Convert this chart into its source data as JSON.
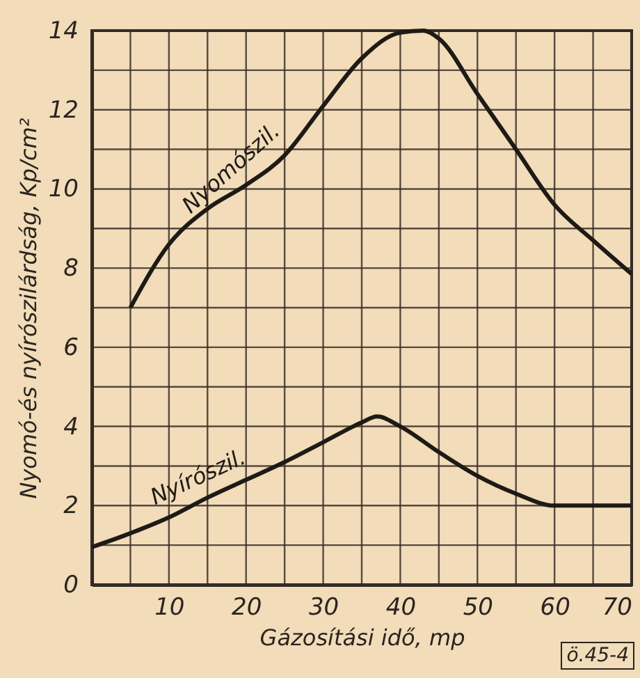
{
  "chart_data": {
    "type": "line",
    "xlabel": "Gázosítási idő, mp",
    "ylabel": "Nyomó-és nyírószilárdság, Kp/cm²",
    "annotations": [
      "ö.45-4"
    ],
    "series": [
      {
        "name": "Nyomószil.",
        "color": "#1e1a16",
        "x": [
          5,
          10,
          15,
          20,
          25,
          30,
          35,
          40,
          43,
          45,
          50,
          55,
          60,
          65,
          70
        ],
        "values": [
          7,
          8.6,
          9.5,
          10.1,
          10.85,
          12.1,
          13.3,
          13.95,
          14,
          13.8,
          12.4,
          11,
          9.6,
          8.7,
          7.85
        ]
      },
      {
        "name": "Nyírószil.",
        "color": "#1e1a16",
        "x": [
          0,
          5,
          10,
          15,
          20,
          25,
          30,
          35,
          37,
          40,
          45,
          50,
          55,
          60,
          65,
          70
        ],
        "values": [
          0.95,
          1.3,
          1.7,
          2.2,
          2.65,
          3.1,
          3.6,
          4.1,
          4.25,
          4,
          3.35,
          2.75,
          2.3,
          2,
          2,
          2
        ]
      }
    ],
    "xlim": [
      0,
      70
    ],
    "ylim": [
      0,
      14
    ],
    "xticks": [
      {
        "value": 0,
        "label": null
      },
      {
        "value": 5,
        "label": null
      },
      10,
      {
        "value": 15,
        "label": null
      },
      20,
      {
        "value": 25,
        "label": null
      },
      30,
      {
        "value": 35,
        "label": null
      },
      40,
      {
        "value": 45,
        "label": null
      },
      50,
      {
        "value": 55,
        "label": null
      },
      60,
      {
        "value": 65,
        "label": null
      },
      70
    ],
    "yticks": [
      0,
      {
        "value": 1,
        "label": null
      },
      2,
      {
        "value": 3,
        "label": null
      },
      4,
      {
        "value": 5,
        "label": null
      },
      6,
      {
        "value": 7,
        "label": null
      },
      8,
      {
        "value": 9,
        "label": null
      },
      10,
      {
        "value": 11,
        "label": null
      },
      12,
      {
        "value": 13,
        "label": null
      },
      14
    ],
    "grid": true,
    "line_style": "solid",
    "marker": "none"
  }
}
